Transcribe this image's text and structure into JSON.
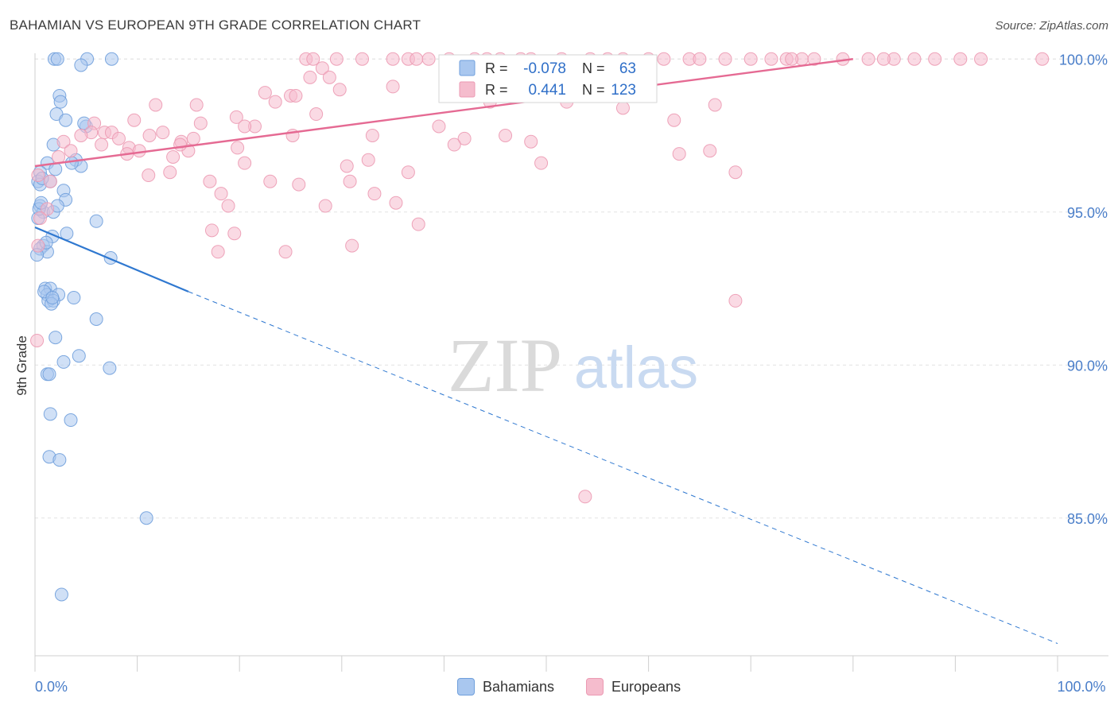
{
  "title": "BAHAMIAN VS EUROPEAN 9TH GRADE CORRELATION CHART",
  "source": "Source: ZipAtlas.com",
  "watermark": {
    "zip": "ZIP",
    "atlas": "atlas"
  },
  "colors": {
    "blue_fill": "#a9c7ef",
    "blue_stroke": "#6f9fdc",
    "blue_line": "#2f78d0",
    "pink_fill": "#f5bccd",
    "pink_stroke": "#ec9ab3",
    "pink_line": "#e56a93",
    "tick_label": "#4a7ec9",
    "grid": "#e2e2e2"
  },
  "stats_box": {
    "rows": [
      {
        "r_label": "R =",
        "r_value": "-0.078",
        "n_label": "N =",
        "n_value": "63"
      },
      {
        "r_label": "R =",
        "r_value": "0.441",
        "n_label": "N =",
        "n_value": "123"
      }
    ]
  },
  "legend": {
    "bahamians": "Bahamians",
    "europeans": "Europeans"
  },
  "chart_data": {
    "type": "scatter",
    "xlabel": "",
    "ylabel": "9th Grade",
    "xlim": [
      0,
      100
    ],
    "ylim": [
      80.5,
      100.5
    ],
    "x_tick_labels": [
      {
        "value": 0,
        "label": "0.0%"
      },
      {
        "value": 100,
        "label": "100.0%"
      }
    ],
    "y_tick_labels": [
      {
        "value": 100,
        "label": "100.0%"
      },
      {
        "value": 95,
        "label": "95.0%"
      },
      {
        "value": 90,
        "label": "90.0%"
      },
      {
        "value": 85,
        "label": "85.0%"
      }
    ],
    "series": [
      {
        "name": "Bahamians",
        "r": -0.078,
        "n": 63,
        "trend": {
          "solid": [
            [
              0,
              94.5
            ],
            [
              15,
              92.4
            ]
          ],
          "dashed": [
            [
              15,
              92.4
            ],
            [
              100,
              80.9
            ]
          ]
        },
        "points": [
          [
            1.9,
            100
          ],
          [
            2.2,
            100
          ],
          [
            5.1,
            100
          ],
          [
            7.5,
            100
          ],
          [
            4.5,
            99.8
          ],
          [
            2.4,
            98.8
          ],
          [
            2.5,
            98.6
          ],
          [
            2.1,
            98.2
          ],
          [
            3.0,
            98.0
          ],
          [
            5.0,
            97.8
          ],
          [
            1.8,
            97.2
          ],
          [
            4.0,
            96.7
          ],
          [
            4.5,
            96.5
          ],
          [
            1.2,
            96.6
          ],
          [
            0.5,
            96.3
          ],
          [
            0.3,
            96.0
          ],
          [
            0.5,
            95.9
          ],
          [
            1.5,
            96.0
          ],
          [
            2.8,
            95.7
          ],
          [
            3.0,
            95.4
          ],
          [
            0.5,
            95.2
          ],
          [
            0.8,
            95.0
          ],
          [
            1.8,
            95.0
          ],
          [
            0.3,
            94.8
          ],
          [
            6.0,
            94.7
          ],
          [
            3.1,
            94.3
          ],
          [
            1.7,
            94.2
          ],
          [
            0.8,
            93.9
          ],
          [
            0.5,
            93.8
          ],
          [
            1.2,
            93.7
          ],
          [
            7.4,
            93.5
          ],
          [
            1.0,
            92.5
          ],
          [
            1.5,
            92.5
          ],
          [
            1.2,
            92.3
          ],
          [
            2.3,
            92.3
          ],
          [
            3.8,
            92.2
          ],
          [
            1.3,
            92.1
          ],
          [
            1.8,
            92.1
          ],
          [
            1.6,
            92.0
          ],
          [
            6.0,
            91.5
          ],
          [
            2.0,
            90.9
          ],
          [
            4.3,
            90.3
          ],
          [
            2.8,
            90.1
          ],
          [
            7.3,
            89.9
          ],
          [
            1.2,
            89.7
          ],
          [
            1.4,
            89.7
          ],
          [
            1.5,
            88.4
          ],
          [
            3.5,
            88.2
          ],
          [
            1.4,
            87.0
          ],
          [
            2.4,
            86.9
          ],
          [
            10.9,
            85.0
          ],
          [
            2.6,
            82.5
          ],
          [
            0.4,
            95.1
          ],
          [
            0.6,
            95.3
          ],
          [
            2.0,
            96.4
          ],
          [
            0.9,
            92.4
          ],
          [
            1.1,
            94.0
          ],
          [
            3.6,
            96.6
          ],
          [
            4.8,
            97.9
          ],
          [
            0.2,
            93.6
          ],
          [
            1.7,
            92.2
          ],
          [
            2.2,
            95.2
          ],
          [
            0.7,
            96.1
          ]
        ]
      },
      {
        "name": "Europeans",
        "r": 0.441,
        "n": 123,
        "trend": {
          "solid": [
            [
              0,
              96.5
            ],
            [
              80,
              100.0
            ]
          ]
        },
        "points": [
          [
            26.5,
            100
          ],
          [
            27.2,
            100
          ],
          [
            29.5,
            100
          ],
          [
            32,
            100
          ],
          [
            35,
            100
          ],
          [
            36.5,
            100
          ],
          [
            37.3,
            100
          ],
          [
            40.5,
            100
          ],
          [
            43,
            100
          ],
          [
            44.2,
            100
          ],
          [
            45.5,
            100
          ],
          [
            47.5,
            100
          ],
          [
            48.5,
            100
          ],
          [
            51.5,
            100
          ],
          [
            54.3,
            100
          ],
          [
            56,
            100
          ],
          [
            57.5,
            100
          ],
          [
            60,
            100
          ],
          [
            61.5,
            100
          ],
          [
            64,
            100
          ],
          [
            65,
            100
          ],
          [
            70,
            100
          ],
          [
            72,
            100
          ],
          [
            73.5,
            100
          ],
          [
            75,
            100
          ],
          [
            76.2,
            100
          ],
          [
            79,
            100
          ],
          [
            81.5,
            100
          ],
          [
            84,
            100
          ],
          [
            86,
            100
          ],
          [
            92.5,
            100
          ],
          [
            98.5,
            100
          ],
          [
            88,
            100
          ],
          [
            90.5,
            100
          ],
          [
            28.1,
            99.7
          ],
          [
            26.9,
            99.4
          ],
          [
            28.8,
            99.4
          ],
          [
            29.8,
            99.0
          ],
          [
            22.5,
            98.9
          ],
          [
            25.0,
            98.8
          ],
          [
            23.5,
            98.6
          ],
          [
            25.5,
            98.8
          ],
          [
            11.8,
            98.5
          ],
          [
            15.8,
            98.5
          ],
          [
            66.5,
            98.5
          ],
          [
            44.5,
            98.6
          ],
          [
            27.5,
            98.2
          ],
          [
            19.7,
            98.1
          ],
          [
            21.5,
            97.8
          ],
          [
            20.5,
            97.8
          ],
          [
            16.2,
            97.9
          ],
          [
            9.7,
            98.0
          ],
          [
            5.8,
            97.9
          ],
          [
            6.8,
            97.6
          ],
          [
            5.5,
            97.6
          ],
          [
            7.5,
            97.6
          ],
          [
            8.2,
            97.4
          ],
          [
            11.2,
            97.5
          ],
          [
            4.5,
            97.5
          ],
          [
            12.5,
            97.6
          ],
          [
            25.2,
            97.5
          ],
          [
            33.0,
            97.5
          ],
          [
            14.3,
            97.3
          ],
          [
            19.8,
            97.1
          ],
          [
            9.2,
            97.1
          ],
          [
            10.2,
            97.0
          ],
          [
            15.0,
            97.0
          ],
          [
            6.5,
            97.2
          ],
          [
            2.8,
            97.3
          ],
          [
            3.5,
            97.0
          ],
          [
            2.3,
            96.8
          ],
          [
            13.5,
            96.8
          ],
          [
            20.5,
            96.6
          ],
          [
            30.5,
            96.5
          ],
          [
            32.6,
            96.7
          ],
          [
            36.5,
            96.3
          ],
          [
            11.1,
            96.2
          ],
          [
            13.2,
            96.3
          ],
          [
            0.3,
            96.2
          ],
          [
            1.5,
            96.0
          ],
          [
            17.1,
            96.0
          ],
          [
            23.0,
            96.0
          ],
          [
            25.8,
            95.9
          ],
          [
            30.8,
            96.0
          ],
          [
            18.2,
            95.6
          ],
          [
            33.2,
            95.6
          ],
          [
            18.9,
            95.2
          ],
          [
            28.4,
            95.2
          ],
          [
            35.3,
            95.3
          ],
          [
            1.2,
            95.1
          ],
          [
            0.5,
            94.8
          ],
          [
            17.3,
            94.4
          ],
          [
            19.5,
            94.3
          ],
          [
            37.5,
            94.6
          ],
          [
            0.3,
            93.9
          ],
          [
            17.9,
            93.7
          ],
          [
            24.5,
            93.7
          ],
          [
            31.0,
            93.9
          ],
          [
            68.5,
            96.3
          ],
          [
            57.5,
            98.4
          ],
          [
            35.0,
            99.1
          ],
          [
            52,
            98.6
          ],
          [
            42,
            97.4
          ],
          [
            48.5,
            97.3
          ],
          [
            68.5,
            92.1
          ],
          [
            53.8,
            85.7
          ],
          [
            0.2,
            90.8
          ],
          [
            15.5,
            97.4
          ],
          [
            9.0,
            96.9
          ],
          [
            14.2,
            97.2
          ],
          [
            38.5,
            100
          ],
          [
            59.5,
            99.2
          ],
          [
            62.5,
            98.0
          ],
          [
            66,
            97.0
          ],
          [
            46.0,
            97.5
          ],
          [
            49.5,
            96.6
          ],
          [
            39.5,
            97.8
          ],
          [
            41.0,
            97.2
          ],
          [
            67.5,
            100
          ],
          [
            63.0,
            96.9
          ],
          [
            74.0,
            100
          ],
          [
            83.0,
            100
          ]
        ]
      }
    ]
  }
}
